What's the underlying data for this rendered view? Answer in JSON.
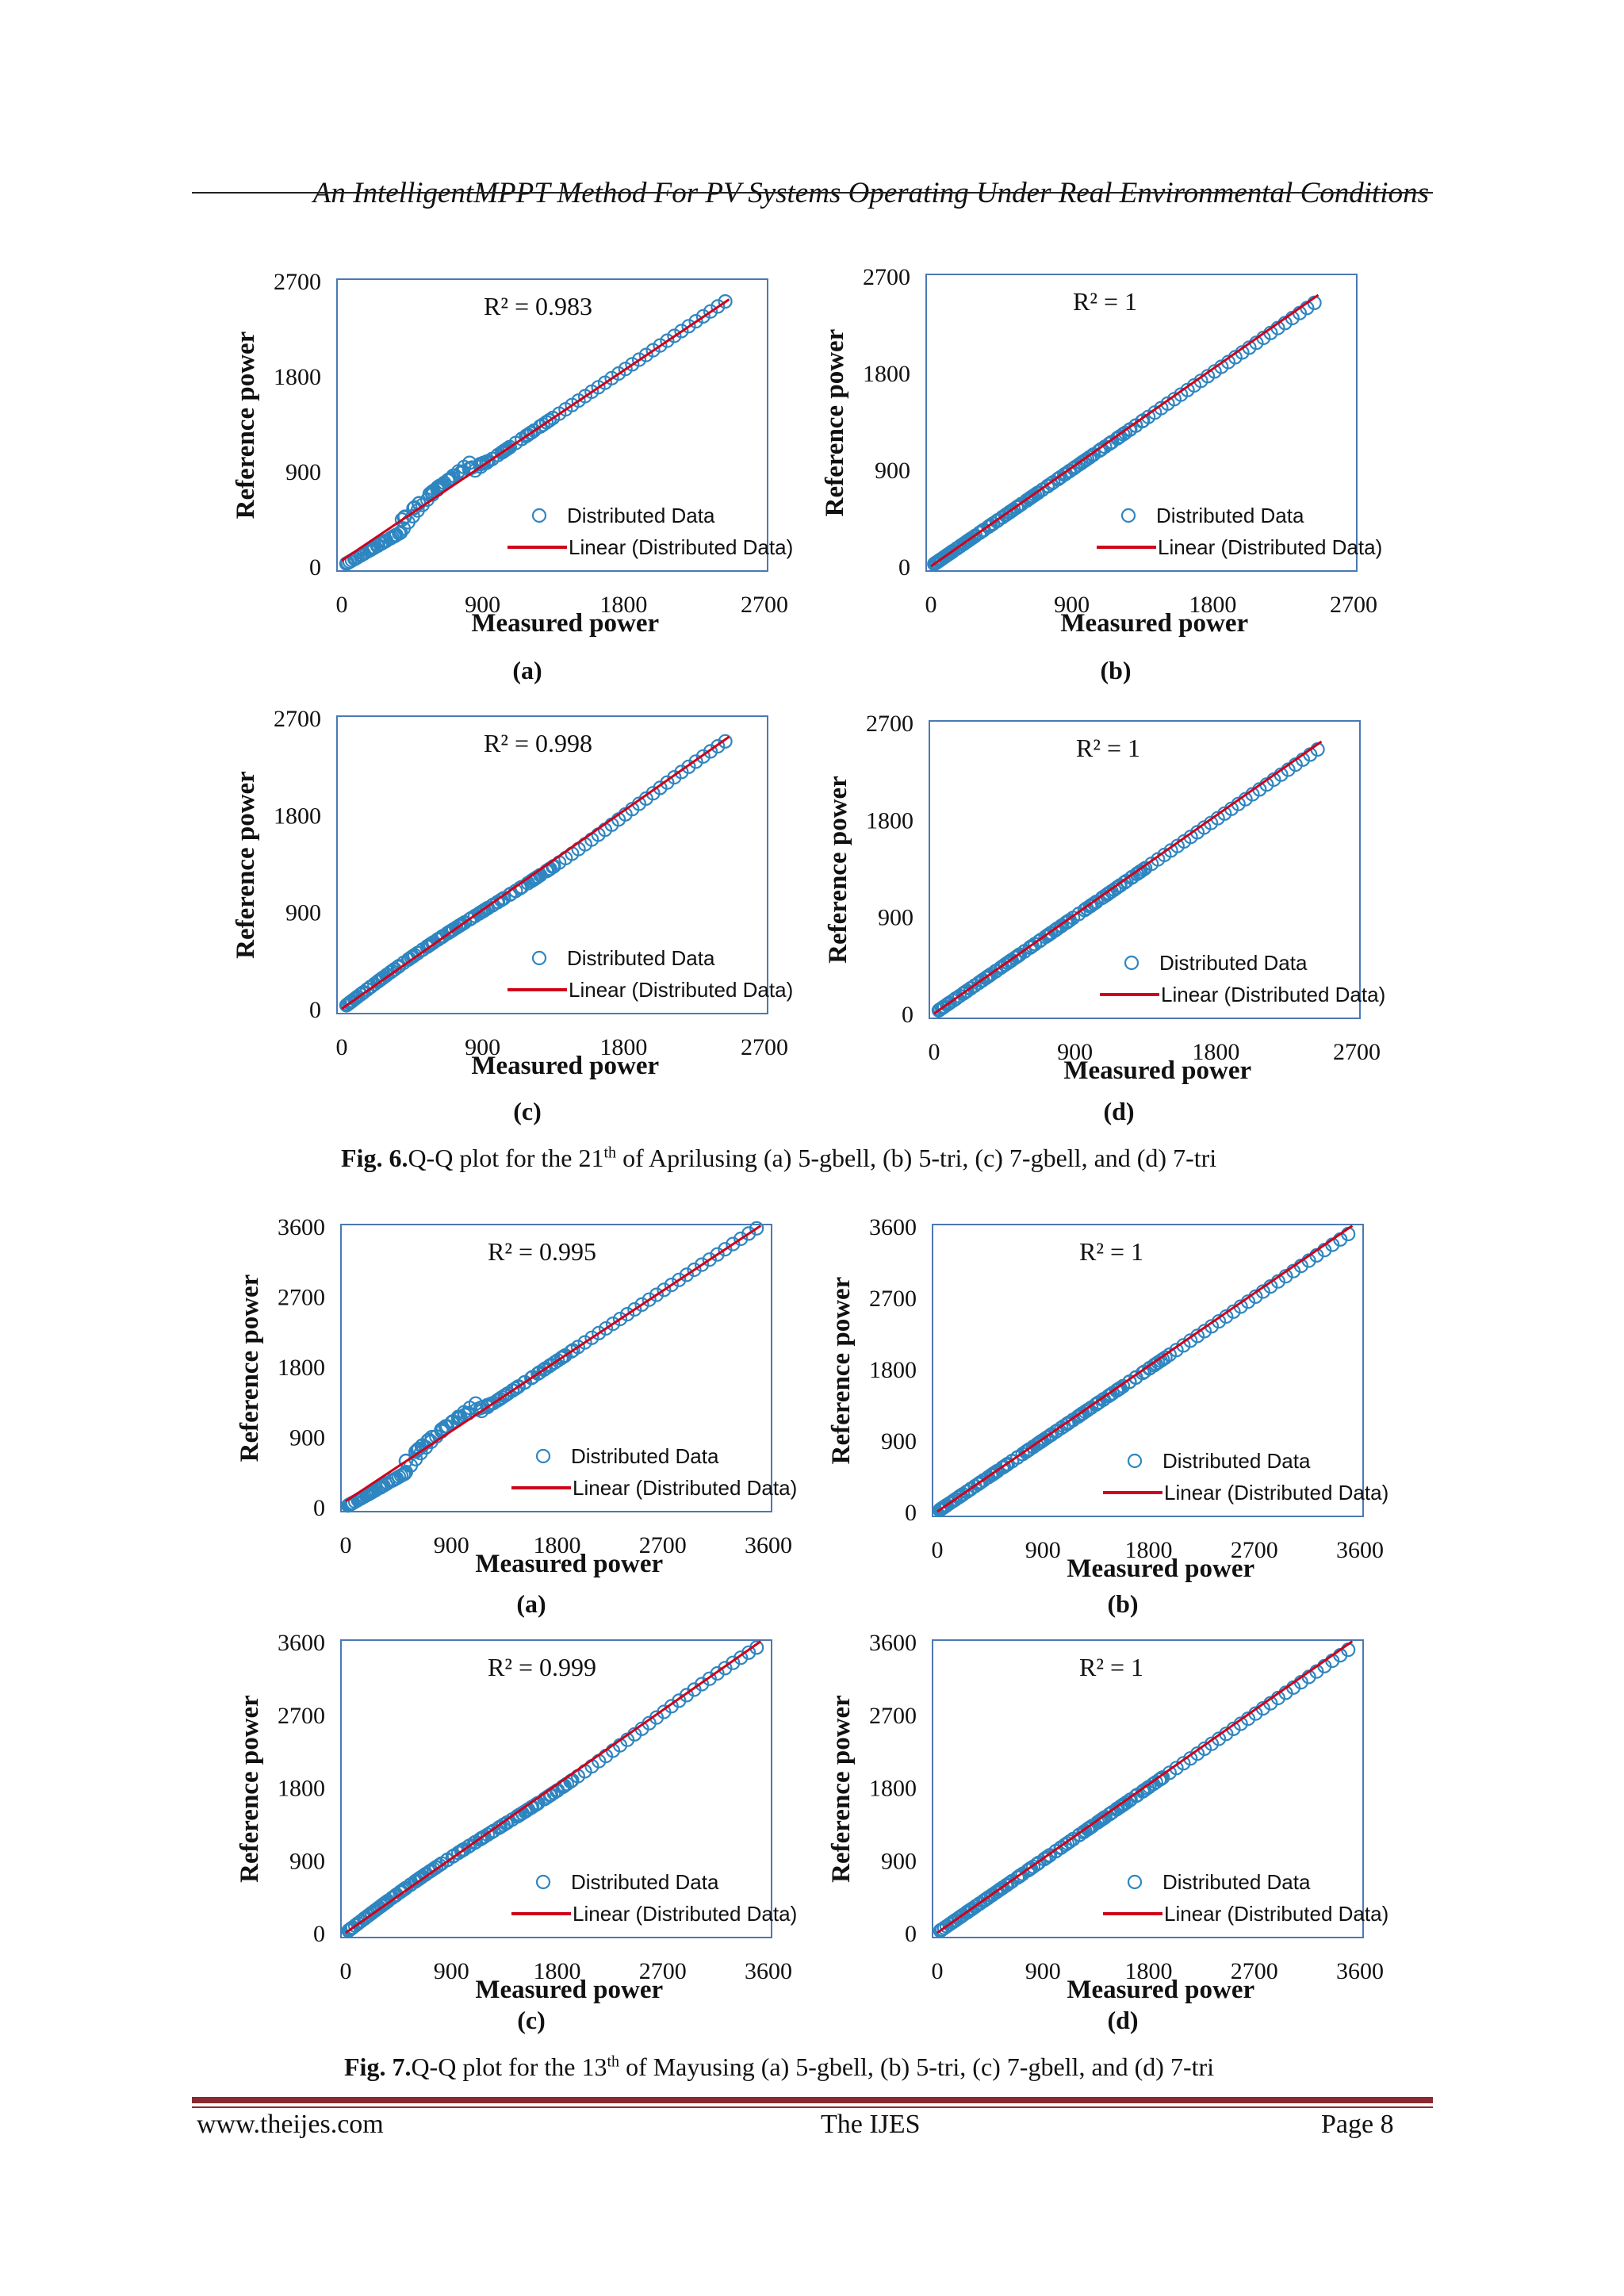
{
  "header": {
    "title": "An IntelligentMPPT Method For PV Systems Operating Under Real Environmental Conditions"
  },
  "fig6": {
    "caption_bold": "Fig. 6.",
    "caption_pre": "Q-Q plot for the 21",
    "caption_sup": "th",
    "caption_post": " of Aprilusing (a) 5-gbell, (b) 5-tri, (c) 7-gbell, and (d) 7-tri"
  },
  "fig7": {
    "caption_bold": "Fig. 7.",
    "caption_pre": "Q-Q plot for the 13",
    "caption_sup": "th",
    "caption_post": " of Mayusing (a) 5-gbell, (b) 5-tri, (c) 7-gbell, and (d) 7-tri"
  },
  "footer": {
    "left": "www.theijes.com",
    "center": "The IJES",
    "right": "Page 8"
  },
  "colors": {
    "marker": "#2e86c1",
    "fit_line": "#d0021b",
    "frame": "#4a79b4",
    "footer_rule": "#8a2a30"
  },
  "chart_data": [
    {
      "type": "scatter",
      "panel": "(a)",
      "group": "fig6",
      "r2": "R² = 0.983",
      "xlabel": "Measured power",
      "ylabel": "Reference power",
      "xticks": [
        "0",
        "900",
        "1800",
        "2700"
      ],
      "yticks": [
        "0",
        "900",
        "1800",
        "2700"
      ],
      "xlim": [
        0,
        2700
      ],
      "ylim": [
        0,
        2700
      ],
      "max": 2450,
      "shape": "kink",
      "legend": [
        "Distributed Data",
        "Linear (Distributed Data)"
      ]
    },
    {
      "type": "scatter",
      "panel": "(b)",
      "group": "fig6",
      "r2": "R² = 1",
      "xlabel": "Measured power",
      "ylabel": "Reference power",
      "xticks": [
        "0",
        "900",
        "1800",
        "2700"
      ],
      "yticks": [
        "0",
        "900",
        "1800",
        "2700"
      ],
      "xlim": [
        0,
        2700
      ],
      "ylim": [
        0,
        2700
      ],
      "max": 2450,
      "shape": "linear",
      "legend": [
        "Distributed Data",
        "Linear (Distributed Data)"
      ]
    },
    {
      "type": "scatter",
      "panel": "(c)",
      "group": "fig6",
      "r2": "R² = 0.998",
      "xlabel": "Measured power",
      "ylabel": "Reference power",
      "xticks": [
        "0",
        "900",
        "1800",
        "2700"
      ],
      "yticks": [
        "0",
        "900",
        "1800",
        "2700"
      ],
      "xlim": [
        0,
        2700
      ],
      "ylim": [
        0,
        2700
      ],
      "max": 2450,
      "shape": "slight",
      "legend": [
        "Distributed Data",
        "Linear (Distributed Data)"
      ]
    },
    {
      "type": "scatter",
      "panel": "(d)",
      "group": "fig6",
      "r2": "R² = 1",
      "xlabel": "Measured power",
      "ylabel": "Reference power",
      "xticks": [
        "0",
        "900",
        "1800",
        "2700"
      ],
      "yticks": [
        "0",
        "900",
        "1800",
        "2700"
      ],
      "xlim": [
        0,
        2700
      ],
      "ylim": [
        0,
        2700
      ],
      "max": 2450,
      "shape": "linear",
      "legend": [
        "Distributed Data",
        "Linear (Distributed Data)"
      ]
    },
    {
      "type": "scatter",
      "panel": "(a)",
      "group": "fig7",
      "r2": "R² = 0.995",
      "xlabel": "Measured power",
      "ylabel": "Reference power",
      "xticks": [
        "0",
        "900",
        "1800",
        "2700",
        "3600"
      ],
      "yticks": [
        "0",
        "900",
        "1800",
        "2700",
        "3600"
      ],
      "xlim": [
        0,
        3600
      ],
      "ylim": [
        0,
        3600
      ],
      "max": 3500,
      "shape": "kink",
      "legend": [
        "Distributed Data",
        "Linear (Distributed Data)"
      ]
    },
    {
      "type": "scatter",
      "panel": "(b)",
      "group": "fig7",
      "r2": "R² = 1",
      "xlabel": "Measured power",
      "ylabel": "Reference power",
      "xticks": [
        "0",
        "900",
        "1800",
        "2700",
        "3600"
      ],
      "yticks": [
        "0",
        "900",
        "1800",
        "2700",
        "3600"
      ],
      "xlim": [
        0,
        3600
      ],
      "ylim": [
        0,
        3600
      ],
      "max": 3500,
      "shape": "linear",
      "legend": [
        "Distributed Data",
        "Linear (Distributed Data)"
      ]
    },
    {
      "type": "scatter",
      "panel": "(c)",
      "group": "fig7",
      "r2": "R² = 0.999",
      "xlabel": "Measured power",
      "ylabel": "Reference power",
      "xticks": [
        "0",
        "900",
        "1800",
        "2700",
        "3600"
      ],
      "yticks": [
        "0",
        "900",
        "1800",
        "2700",
        "3600"
      ],
      "xlim": [
        0,
        3600
      ],
      "ylim": [
        0,
        3600
      ],
      "max": 3500,
      "shape": "slight",
      "legend": [
        "Distributed Data",
        "Linear (Distributed Data)"
      ]
    },
    {
      "type": "scatter",
      "panel": "(d)",
      "group": "fig7",
      "r2": "R² = 1",
      "xlabel": "Measured power",
      "ylabel": "Reference power",
      "xticks": [
        "0",
        "900",
        "1800",
        "2700",
        "3600"
      ],
      "yticks": [
        "0",
        "900",
        "1800",
        "2700",
        "3600"
      ],
      "xlim": [
        0,
        3600
      ],
      "ylim": [
        0,
        3600
      ],
      "max": 3500,
      "shape": "linear",
      "legend": [
        "Distributed Data",
        "Linear (Distributed Data)"
      ]
    }
  ]
}
